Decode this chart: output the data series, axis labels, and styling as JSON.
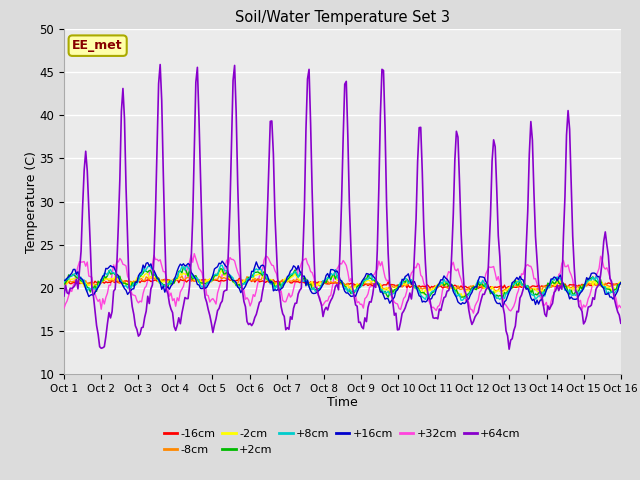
{
  "title": "Soil/Water Temperature Set 3",
  "xlabel": "Time",
  "ylabel": "Temperature (C)",
  "ylim": [
    10,
    50
  ],
  "yticks": [
    10,
    15,
    20,
    25,
    30,
    35,
    40,
    45,
    50
  ],
  "x_labels": [
    "Oct 1",
    "Oct 2",
    "Oct 3",
    "Oct 4",
    "Oct 5",
    "Oct 6",
    "Oct 7",
    "Oct 8",
    "Oct 9",
    "Oct 10",
    "Oct 11",
    "Oct 12",
    "Oct 13",
    "Oct 14",
    "Oct 15",
    "Oct 16"
  ],
  "bg_color": "#dcdcdc",
  "plot_bg_color": "#ebebeb",
  "series_colors": {
    "-16cm": "#ff0000",
    "-8cm": "#ff8800",
    "-2cm": "#ffff00",
    "+2cm": "#00bb00",
    "+8cm": "#00cccc",
    "+16cm": "#0000cc",
    "+32cm": "#ff44dd",
    "+64cm": "#8800cc"
  },
  "watermark_text": "EE_met",
  "watermark_color": "#880000",
  "watermark_bg": "#ffffaa",
  "watermark_border": "#aaaa00",
  "n_days": 15,
  "base_temp": 20.5,
  "peak_vals": [
    36,
    43,
    46,
    46,
    46,
    40,
    46,
    44,
    46,
    39,
    39,
    38,
    39,
    41,
    26
  ],
  "night_lows": [
    19,
    12,
    14,
    15,
    15,
    15,
    15,
    17,
    15,
    15,
    16,
    16,
    13,
    17,
    16
  ]
}
